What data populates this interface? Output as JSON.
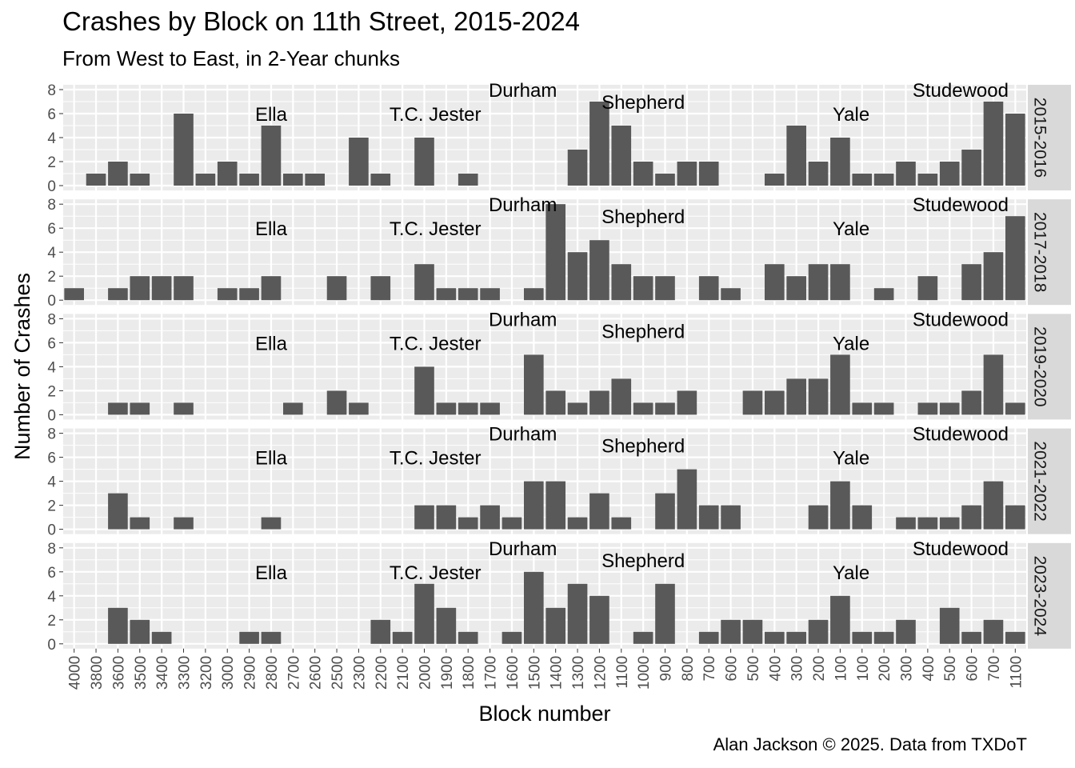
{
  "chart_data": {
    "type": "bar",
    "title": "Crashes by Block on 11th Street, 2015-2024",
    "subtitle": "From West to East, in 2-Year chunks",
    "caption": "Alan Jackson © 2025. Data from TXDoT",
    "xlabel": "Block number",
    "ylabel": "Number of Crashes",
    "ylim": [
      0,
      8.4
    ],
    "yticks": [
      0,
      2,
      4,
      6,
      8
    ],
    "grid": true,
    "categories": [
      "4000",
      "3800",
      "3600",
      "3500",
      "3400",
      "3300",
      "3200",
      "3000",
      "2900",
      "2800",
      "2700",
      "2600",
      "2500",
      "2300",
      "2200",
      "2100",
      "2000",
      "1900",
      "1800",
      "1700",
      "1600",
      "1500",
      "1400",
      "1300",
      "1200",
      "1100",
      "1000",
      "900",
      "800",
      "700",
      "600",
      "500",
      "400",
      "300",
      "200",
      "100",
      "100",
      "200",
      "300",
      "400",
      "500",
      "600",
      "700",
      "1100"
    ],
    "annotations": [
      {
        "text": "Ella",
        "x_index": 9,
        "y": 6.0
      },
      {
        "text": "T.C. Jester",
        "x_index": 16.5,
        "y": 6.0
      },
      {
        "text": "Durham",
        "x_index": 20.5,
        "y": 8.0
      },
      {
        "text": "Shepherd",
        "x_index": 26,
        "y": 7.0
      },
      {
        "text": "Yale",
        "x_index": 35.5,
        "y": 6.0
      },
      {
        "text": "Studewood",
        "x_index": 40.5,
        "y": 8.0
      }
    ],
    "series": [
      {
        "name": "2015-2016",
        "values": [
          0,
          1,
          2,
          1,
          0,
          6,
          1,
          2,
          1,
          5,
          1,
          1,
          0,
          4,
          1,
          0,
          4,
          0,
          1,
          0,
          0,
          0,
          0,
          3,
          7,
          5,
          2,
          1,
          2,
          2,
          0,
          0,
          1,
          5,
          2,
          4,
          1,
          1,
          2,
          1,
          2,
          3,
          7,
          6
        ]
      },
      {
        "name": "2017-2018",
        "values": [
          1,
          0,
          1,
          2,
          2,
          2,
          0,
          1,
          1,
          2,
          0,
          0,
          2,
          0,
          2,
          0,
          3,
          1,
          1,
          1,
          0,
          1,
          8,
          4,
          5,
          3,
          2,
          2,
          0,
          2,
          1,
          0,
          3,
          2,
          3,
          3,
          0,
          1,
          0,
          2,
          0,
          3,
          4,
          7
        ]
      },
      {
        "name": "2019-2020",
        "values": [
          0,
          0,
          1,
          1,
          0,
          1,
          0,
          0,
          0,
          0,
          1,
          0,
          2,
          1,
          0,
          0,
          4,
          1,
          1,
          1,
          0,
          5,
          2,
          1,
          2,
          3,
          1,
          1,
          2,
          0,
          0,
          2,
          2,
          3,
          3,
          5,
          1,
          1,
          0,
          1,
          1,
          2,
          5,
          1
        ]
      },
      {
        "name": "2021-2022",
        "values": [
          0,
          0,
          3,
          1,
          0,
          1,
          0,
          0,
          0,
          1,
          0,
          0,
          0,
          0,
          0,
          0,
          2,
          2,
          1,
          2,
          1,
          4,
          4,
          1,
          3,
          1,
          0,
          3,
          5,
          2,
          2,
          0,
          0,
          0,
          2,
          4,
          2,
          0,
          1,
          1,
          1,
          2,
          4,
          2
        ]
      },
      {
        "name": "2023-2024",
        "values": [
          0,
          0,
          3,
          2,
          1,
          0,
          0,
          0,
          1,
          1,
          0,
          0,
          0,
          0,
          2,
          1,
          5,
          3,
          1,
          0,
          1,
          6,
          3,
          5,
          4,
          0,
          1,
          5,
          0,
          1,
          2,
          2,
          1,
          1,
          2,
          4,
          1,
          1,
          2,
          0,
          3,
          1,
          2,
          1
        ]
      }
    ]
  },
  "colors": {
    "panel_bg": "#ebebeb",
    "grid": "#ffffff",
    "bar": "#595959",
    "strip_bg": "#d9d9d9",
    "axis_text": "#4d4d4d"
  }
}
